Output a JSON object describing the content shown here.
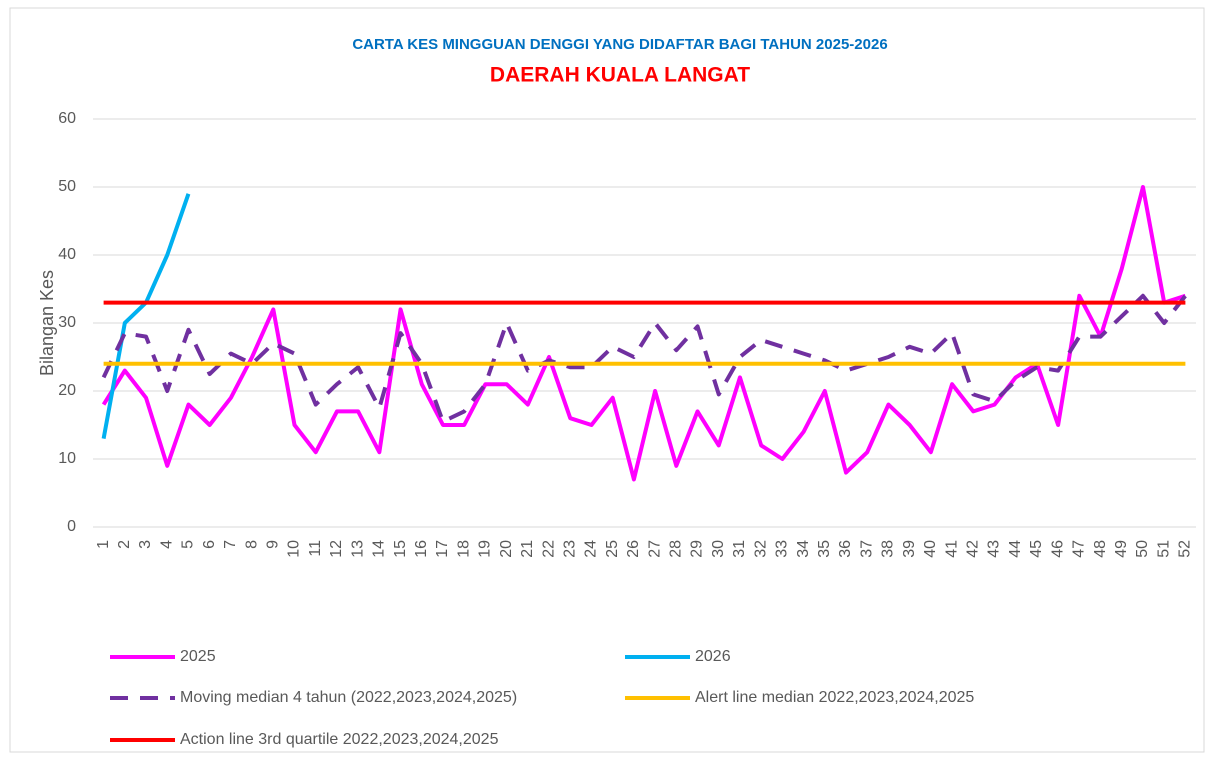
{
  "chart_data": {
    "type": "line",
    "title": "CARTA KES MINGGUAN DENGGI YANG DIDAFTAR BAGI TAHUN 2025-2026",
    "subtitle": "DAERAH KUALA LANGAT",
    "y_label": "Bilangan Kes",
    "categories": [
      "1",
      "2",
      "3",
      "4",
      "5",
      "6",
      "7",
      "8",
      "9",
      "10",
      "11",
      "12",
      "13",
      "14",
      "15",
      "16",
      "17",
      "18",
      "19",
      "20",
      "21",
      "22",
      "23",
      "24",
      "25",
      "26",
      "27",
      "28",
      "29",
      "30",
      "31",
      "32",
      "33",
      "34",
      "35",
      "36",
      "37",
      "38",
      "39",
      "40",
      "41",
      "42",
      "43",
      "44",
      "45",
      "46",
      "47",
      "48",
      "49",
      "50",
      "51",
      "52"
    ],
    "ylim": [
      0,
      60
    ],
    "yticks": [
      0,
      10,
      20,
      30,
      40,
      50,
      60
    ],
    "grid": true,
    "series": [
      {
        "name": "2025",
        "color": "#ff00ff",
        "values": [
          18,
          23,
          19,
          9,
          18,
          15,
          19,
          25,
          32,
          15,
          11,
          17,
          17,
          11,
          32,
          21,
          15,
          15,
          21,
          21,
          18,
          25,
          16,
          15,
          19,
          7,
          20,
          9,
          17,
          12,
          22,
          12,
          10,
          14,
          20,
          8,
          11,
          18,
          15,
          11,
          21,
          17,
          18,
          22,
          24,
          15,
          34,
          28,
          38,
          50,
          33,
          34
        ]
      },
      {
        "name": "2026",
        "color": "#00b0f0",
        "values": [
          13,
          30,
          33,
          40,
          49,
          null,
          null,
          null,
          null,
          null,
          null,
          null,
          null,
          null,
          null,
          null,
          null,
          null,
          null,
          null,
          null,
          null,
          null,
          null,
          null,
          null,
          null,
          null,
          null,
          null,
          null,
          null,
          null,
          null,
          null,
          null,
          null,
          null,
          null,
          null,
          null,
          null,
          null,
          null,
          null,
          null,
          null,
          null,
          null,
          null,
          null,
          null
        ]
      },
      {
        "name": "Moving median 4 tahun (2022,2023,2024,2025)",
        "color": "#7030a0",
        "dashed": true,
        "values": [
          22,
          28.5,
          28,
          20,
          29,
          22.5,
          25.5,
          24,
          27,
          25.5,
          18,
          21,
          23.5,
          17.5,
          28.5,
          24,
          15.5,
          17,
          21,
          30,
          23,
          24.5,
          23.5,
          23.5,
          26.5,
          25,
          30,
          26,
          29.5,
          19.5,
          25,
          27.5,
          26.5,
          25.5,
          24.5,
          23,
          24,
          25,
          26.5,
          25.5,
          28.5,
          19.5,
          18.5,
          21.5,
          23.5,
          23,
          28,
          28,
          31,
          34,
          30,
          34
        ]
      },
      {
        "name": "Alert line median 2022,2023,2024,2025",
        "color": "#ffc000",
        "values": [
          24,
          24,
          24,
          24,
          24,
          24,
          24,
          24,
          24,
          24,
          24,
          24,
          24,
          24,
          24,
          24,
          24,
          24,
          24,
          24,
          24,
          24,
          24,
          24,
          24,
          24,
          24,
          24,
          24,
          24,
          24,
          24,
          24,
          24,
          24,
          24,
          24,
          24,
          24,
          24,
          24,
          24,
          24,
          24,
          24,
          24,
          24,
          24,
          24,
          24,
          24,
          24
        ]
      },
      {
        "name": "Action line 3rd quartile 2022,2023,2024,2025",
        "color": "#ff0000",
        "values": [
          33,
          33,
          33,
          33,
          33,
          33,
          33,
          33,
          33,
          33,
          33,
          33,
          33,
          33,
          33,
          33,
          33,
          33,
          33,
          33,
          33,
          33,
          33,
          33,
          33,
          33,
          33,
          33,
          33,
          33,
          33,
          33,
          33,
          33,
          33,
          33,
          33,
          33,
          33,
          33,
          33,
          33,
          33,
          33,
          33,
          33,
          33,
          33,
          33,
          33,
          33,
          33
        ]
      }
    ]
  }
}
